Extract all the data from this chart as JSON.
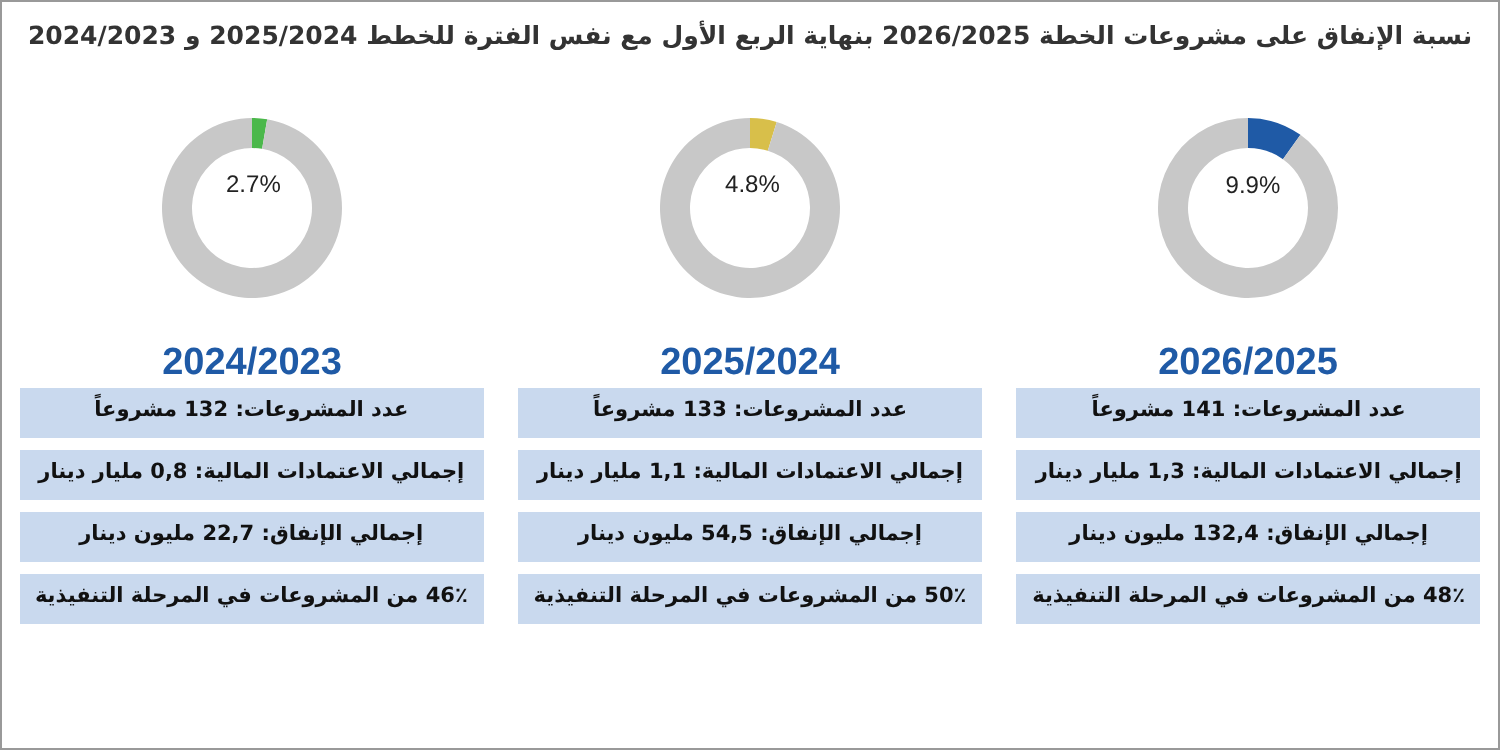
{
  "chart_data": [
    {
      "type": "other",
      "title": "نسبة الإنفاق على مشروعات الخطة 2026/2025 بنهاية الربع الأول مع نفس الفترة للخطط 2025/2024 و 2024/2023"
    },
    {
      "type": "donut",
      "title": "2026/2025",
      "categories": [
        null,
        null
      ],
      "values": [
        9.9,
        90.1
      ],
      "colors": [
        "#1f5aa6",
        "#c8c8c8"
      ],
      "value_labels": [
        "9.9%",
        null
      ],
      "annotations": [
        "عدد المشروعات: 141 مشروعاً",
        "إجمالي الاعتمادات المالية: 1,3 مليار دينار",
        "إجمالي الإنفاق: 132,4 مليون دينار",
        "48٪ من المشروعات في المرحلة التنفيذية"
      ]
    },
    {
      "type": "donut",
      "title": "2025/2024",
      "categories": [
        null,
        null
      ],
      "values": [
        4.8,
        95.2
      ],
      "colors": [
        "#d8bf4a",
        "#c8c8c8"
      ],
      "value_labels": [
        "4.8%",
        null
      ],
      "annotations": [
        "عدد المشروعات: 133 مشروعاً",
        "إجمالي الاعتمادات المالية: 1,1 مليار دينار",
        "إجمالي الإنفاق: 54,5 مليون دينار",
        "50٪ من المشروعات في المرحلة التنفيذية"
      ]
    },
    {
      "type": "donut",
      "title": "2024/2023",
      "categories": [
        null,
        null
      ],
      "values": [
        2.7,
        97.3
      ],
      "colors": [
        "#4bb84b",
        "#c8c8c8"
      ],
      "value_labels": [
        "2.7%",
        null
      ],
      "annotations": [
        "عدد المشروعات: 132 مشروعاً",
        "إجمالي الاعتمادات المالية: 0,8 مليار دينار",
        "إجمالي الإنفاق: 22,7 مليون دينار",
        "46٪ من المشروعات في المرحلة التنفيذية"
      ]
    }
  ]
}
